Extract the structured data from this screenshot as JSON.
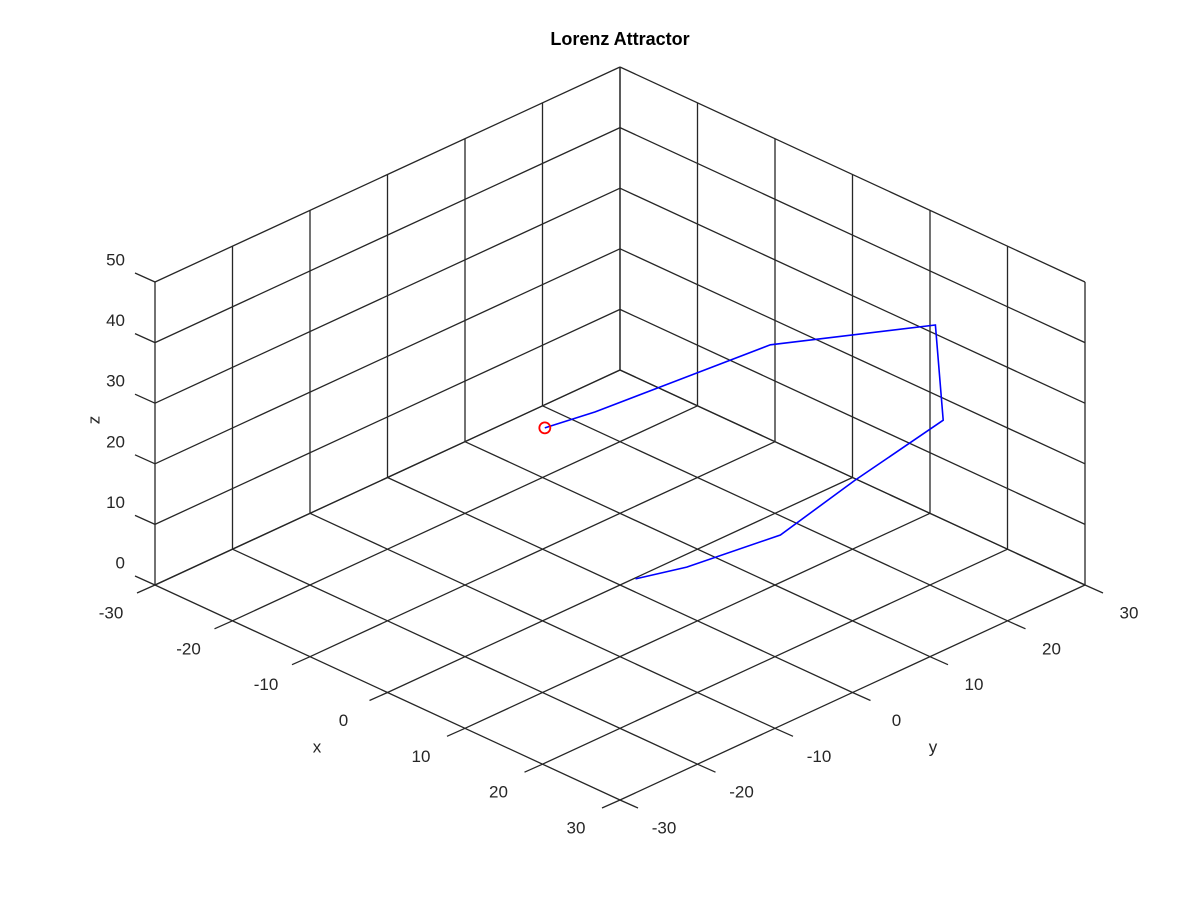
{
  "chart_data": {
    "type": "line3d",
    "title": "Lorenz Attractor",
    "xlabel": "x",
    "ylabel": "y",
    "zlabel": "z",
    "xlim": [
      -30,
      30
    ],
    "ylim": [
      -30,
      30
    ],
    "zlim": [
      0,
      50
    ],
    "xticks": [
      -30,
      -20,
      -10,
      0,
      10,
      20,
      30
    ],
    "yticks": [
      -30,
      -20,
      -10,
      0,
      10,
      20,
      30
    ],
    "zticks": [
      0,
      10,
      20,
      30,
      40,
      50
    ],
    "grid": true,
    "series": [
      {
        "x": [
          1,
          3.5,
          7.6,
          10.7,
          19,
          17.9,
          11.7,
          1.3,
          -3.1
        ],
        "y": [
          1,
          5.1,
          13.1,
          19.6,
          22.7,
          22.8,
          7.7,
          -4.5,
          -6.6
        ],
        "z": [
          1,
          2,
          5,
          12,
          25,
          40,
          42,
          32,
          28
        ],
        "color": "#0000ff"
      },
      {
        "x": [
          -3.1
        ],
        "y": [
          -6.6
        ],
        "z": [
          28
        ],
        "color": "#ff0000",
        "marker": "o"
      }
    ]
  }
}
